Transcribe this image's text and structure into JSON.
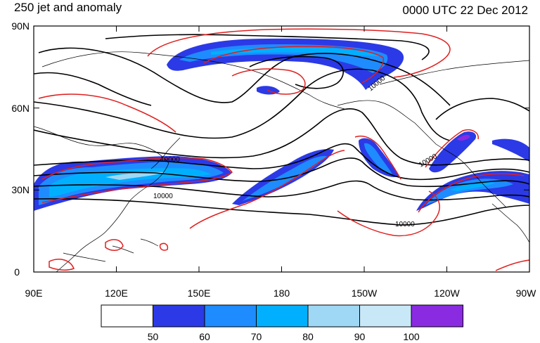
{
  "header": {
    "title": "250 jet and anomaly",
    "timestamp": "0000 UTC 22 Dec 2012"
  },
  "map": {
    "lat_labels": [
      "90N",
      "60N",
      "30N",
      "0"
    ],
    "lon_labels": [
      "90E",
      "120E",
      "150E",
      "180",
      "150W",
      "120W",
      "90W"
    ],
    "contour_labels": [
      "10000",
      "10000",
      "10000",
      "10000",
      "10000"
    ]
  },
  "colorbar": {
    "labels": [
      "50",
      "60",
      "70",
      "80",
      "90",
      "100"
    ],
    "colors": [
      "#ffffff",
      "#2b3ae6",
      "#1e8cff",
      "#00b0ff",
      "#9ed8f5",
      "#c8e8f8",
      "#8a2be2"
    ]
  }
}
